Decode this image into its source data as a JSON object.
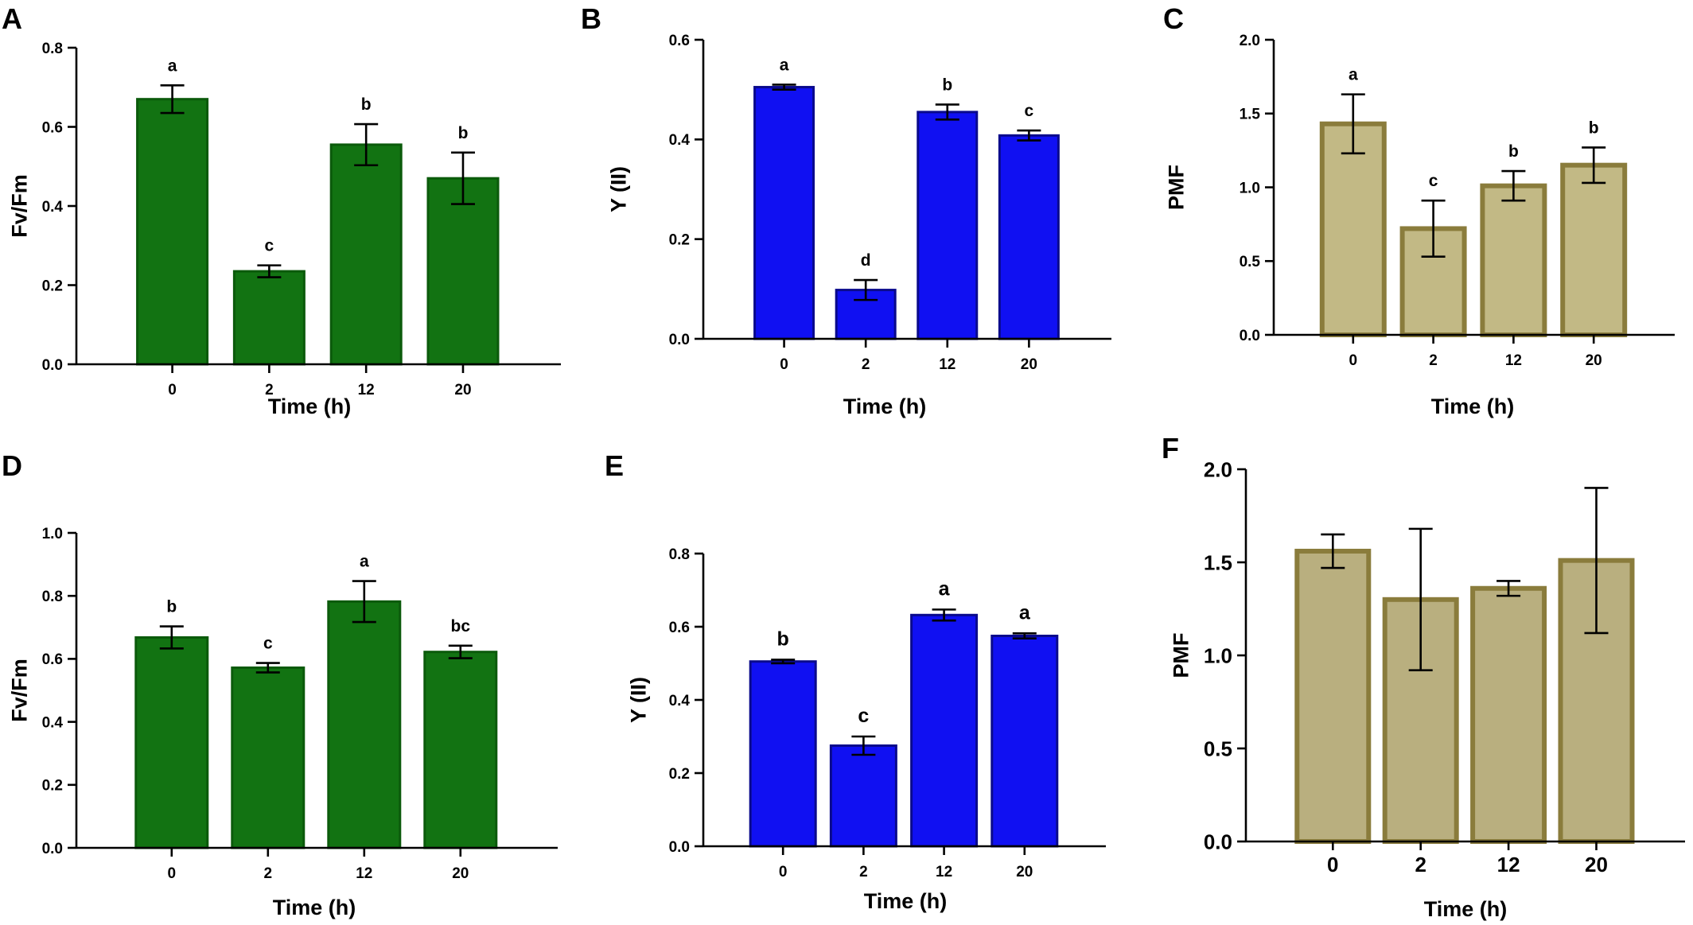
{
  "colors": {
    "green_fill": "#127312",
    "green_edge": "#0b5a0b",
    "blue_fill": "#1010f2",
    "blue_edge": "#0a0a8c",
    "tan_fill": "#c2b985",
    "tan_edge": "#8a7c3c",
    "tan2_fill": "#b9af7f",
    "axis": "#000000"
  },
  "chart_data": [
    {
      "panel": "A",
      "type": "bar",
      "categories": [
        "0",
        "2",
        "12",
        "20"
      ],
      "values": [
        0.67,
        0.235,
        0.555,
        0.47
      ],
      "errors": [
        0.035,
        0.015,
        0.052,
        0.065
      ],
      "significance": [
        "a",
        "c",
        "b",
        "b"
      ],
      "xlabel": "Time (h)",
      "ylabel": "Fv/Fm",
      "ylim": [
        0,
        0.8
      ],
      "yticks": [
        "0.0",
        "0.2",
        "0.4",
        "0.6",
        "0.8"
      ],
      "grid": false,
      "color": "green"
    },
    {
      "panel": "B",
      "type": "bar",
      "categories": [
        "0",
        "2",
        "12",
        "20"
      ],
      "values": [
        0.505,
        0.098,
        0.455,
        0.408
      ],
      "errors": [
        0.005,
        0.02,
        0.015,
        0.01
      ],
      "significance": [
        "a",
        "d",
        "b",
        "c"
      ],
      "xlabel": "Time (h)",
      "ylabel": "Y (II)",
      "ylim": [
        0,
        0.6
      ],
      "yticks": [
        "0.0",
        "0.2",
        "0.4",
        "0.6"
      ],
      "grid": false,
      "color": "blue"
    },
    {
      "panel": "C",
      "type": "bar",
      "categories": [
        "0",
        "2",
        "12",
        "20"
      ],
      "values": [
        1.43,
        0.72,
        1.01,
        1.15
      ],
      "errors": [
        0.2,
        0.19,
        0.1,
        0.12
      ],
      "significance": [
        "a",
        "c",
        "b",
        "b"
      ],
      "xlabel": "Time (h)",
      "ylabel": "PMF",
      "ylim": [
        0,
        2.0
      ],
      "yticks": [
        "0.0",
        "0.5",
        "1.0",
        "1.5",
        "2.0"
      ],
      "grid": false,
      "color": "tan"
    },
    {
      "panel": "D",
      "type": "bar",
      "categories": [
        "0",
        "2",
        "12",
        "20"
      ],
      "values": [
        0.668,
        0.572,
        0.782,
        0.622
      ],
      "errors": [
        0.035,
        0.015,
        0.065,
        0.02
      ],
      "significance": [
        "b",
        "c",
        "a",
        "bc"
      ],
      "xlabel": "Time (h)",
      "ylabel": "Fv/Fm",
      "ylim": [
        0,
        1.0
      ],
      "yticks": [
        "0.0",
        "0.2",
        "0.4",
        "0.6",
        "0.8",
        "1.0"
      ],
      "grid": false,
      "color": "green"
    },
    {
      "panel": "E",
      "type": "bar",
      "categories": [
        "0",
        "2",
        "12",
        "20"
      ],
      "values": [
        0.505,
        0.275,
        0.632,
        0.575
      ],
      "errors": [
        0.005,
        0.025,
        0.015,
        0.007
      ],
      "significance": [
        "b",
        "c",
        "a",
        "a"
      ],
      "xlabel": "Time (h)",
      "ylabel": "Y (II)",
      "ylim": [
        0,
        0.8
      ],
      "yticks": [
        "0.0",
        "0.2",
        "0.4",
        "0.6",
        "0.8"
      ],
      "grid": false,
      "color": "blue"
    },
    {
      "panel": "F",
      "type": "bar",
      "categories": [
        "0",
        "2",
        "12",
        "20"
      ],
      "values": [
        1.56,
        1.3,
        1.36,
        1.51
      ],
      "errors": [
        0.09,
        0.38,
        0.04,
        0.39
      ],
      "significance": [
        "",
        "",
        "",
        ""
      ],
      "xlabel": "Time (h)",
      "ylabel": "PMF",
      "ylim": [
        0,
        2.0
      ],
      "yticks": [
        "0.0",
        "0.5",
        "1.0",
        "1.5",
        "2.0"
      ],
      "grid": false,
      "color": "tan2"
    }
  ]
}
